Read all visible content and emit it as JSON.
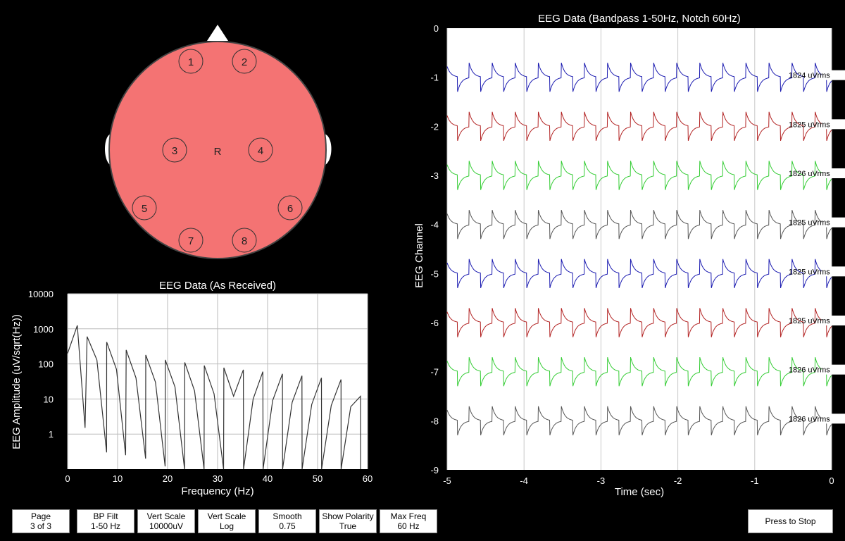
{
  "head": {
    "color": "#f47373",
    "center_label": "R",
    "electrodes": [
      {
        "label": "1"
      },
      {
        "label": "2"
      },
      {
        "label": "3"
      },
      {
        "label": "4"
      },
      {
        "label": "5"
      },
      {
        "label": "6"
      },
      {
        "label": "7"
      },
      {
        "label": "8"
      }
    ]
  },
  "controls": {
    "buttons": [
      {
        "line1": "Page",
        "line2": "3 of 3"
      },
      {
        "line1": "BP Filt",
        "line2": "1-50 Hz"
      },
      {
        "line1": "Vert Scale",
        "line2": "10000uV"
      },
      {
        "line1": "Vert Scale",
        "line2": "Log"
      },
      {
        "line1": "Smooth",
        "line2": "0.75"
      },
      {
        "line1": "Show Polarity",
        "line2": "True"
      },
      {
        "line1": "Max Freq",
        "line2": "60 Hz"
      }
    ],
    "stop_label": "Press to Stop"
  },
  "chart_data": [
    {
      "type": "line",
      "title": "EEG Data (As Received)",
      "xlabel": "Frequency (Hz)",
      "ylabel": "EEG Amplitude (uV/sqrt(Hz))",
      "xlim": [
        0,
        60
      ],
      "ylim": [
        0.1,
        10000
      ],
      "y_scale": "log",
      "x_ticks": [
        "0",
        "10",
        "20",
        "30",
        "40",
        "50",
        "60"
      ],
      "y_ticks": [
        "10000",
        "1000",
        "100",
        "10",
        "1"
      ],
      "grid": true,
      "series": [
        {
          "values_x": [
            0,
            1.95,
            3.9,
            5.86,
            7.81,
            9.77,
            11.72,
            13.67,
            15.63,
            17.58,
            19.53,
            21.48,
            23.44,
            25.39,
            27.34,
            29.3,
            31.25,
            33.2,
            35.16,
            37.11,
            39.06,
            41.02,
            42.97,
            44.92,
            46.88,
            48.83,
            50.78,
            52.73,
            54.69,
            56.64,
            58.59
          ],
          "values_y": [
            200,
            1250,
            600,
            130,
            420,
            70,
            250,
            40,
            180,
            30,
            130,
            22,
            110,
            17,
            90,
            14,
            78,
            12,
            68,
            10,
            60,
            9,
            52,
            8,
            46,
            7,
            40,
            6.5,
            36,
            6,
            12
          ],
          "notches_x": [
            3.5,
            7.8,
            11.6,
            15.6,
            19.5,
            23.4,
            27.3,
            31.2,
            35.2,
            39.1,
            43.0,
            46.9,
            50.8,
            54.7,
            58.6
          ],
          "notches_y": [
            1.5,
            0.3,
            0.25,
            0.2,
            0.12,
            0.1,
            0.1,
            0.1,
            0.1,
            0.1,
            0.1,
            0.1,
            0.1,
            0.1,
            0.1
          ]
        }
      ]
    },
    {
      "type": "line",
      "title": "EEG Data (Bandpass 1-50Hz, Notch 60Hz)",
      "xlabel": "Time (sec)",
      "ylabel": "EEG Channel",
      "xlim": [
        -5,
        0
      ],
      "ylim": [
        -9,
        0
      ],
      "x_ticks": [
        "-5",
        "-4",
        "-3",
        "-2",
        "-1",
        "0"
      ],
      "y_ticks": [
        "0",
        "-1",
        "-2",
        "-3",
        "-4",
        "-5",
        "-6",
        "-7",
        "-8",
        "-9"
      ],
      "grid": "vertical",
      "waveform": {
        "period_sec": 0.3,
        "amplitude_channel_units": 0.3
      },
      "series": [
        {
          "channel": -1,
          "color": "#1a1ab0",
          "rms_label": "1824 uVrms"
        },
        {
          "channel": -2,
          "color": "#b22222",
          "rms_label": "1825 uVrms"
        },
        {
          "channel": -3,
          "color": "#33cc33",
          "rms_label": "1826 uVrms"
        },
        {
          "channel": -4,
          "color": "#555555",
          "rms_label": "1825 uVrms"
        },
        {
          "channel": -5,
          "color": "#1a1ab0",
          "rms_label": "1825 uVrms"
        },
        {
          "channel": -6,
          "color": "#b22222",
          "rms_label": "1825 uVrms"
        },
        {
          "channel": -7,
          "color": "#33cc33",
          "rms_label": "1826 uVrms"
        },
        {
          "channel": -8,
          "color": "#555555",
          "rms_label": "1826 uVrms"
        }
      ]
    }
  ]
}
